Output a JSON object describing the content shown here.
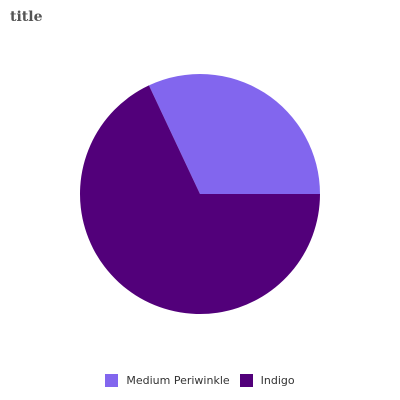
{
  "chart_data": {
    "type": "pie",
    "title": "title",
    "slices": [
      {
        "label": "Medium Periwinkle",
        "value": 32,
        "color": "#8266EE"
      },
      {
        "label": "Indigo",
        "value": 68,
        "color": "#52007A"
      }
    ],
    "legend_position": "bottom"
  }
}
